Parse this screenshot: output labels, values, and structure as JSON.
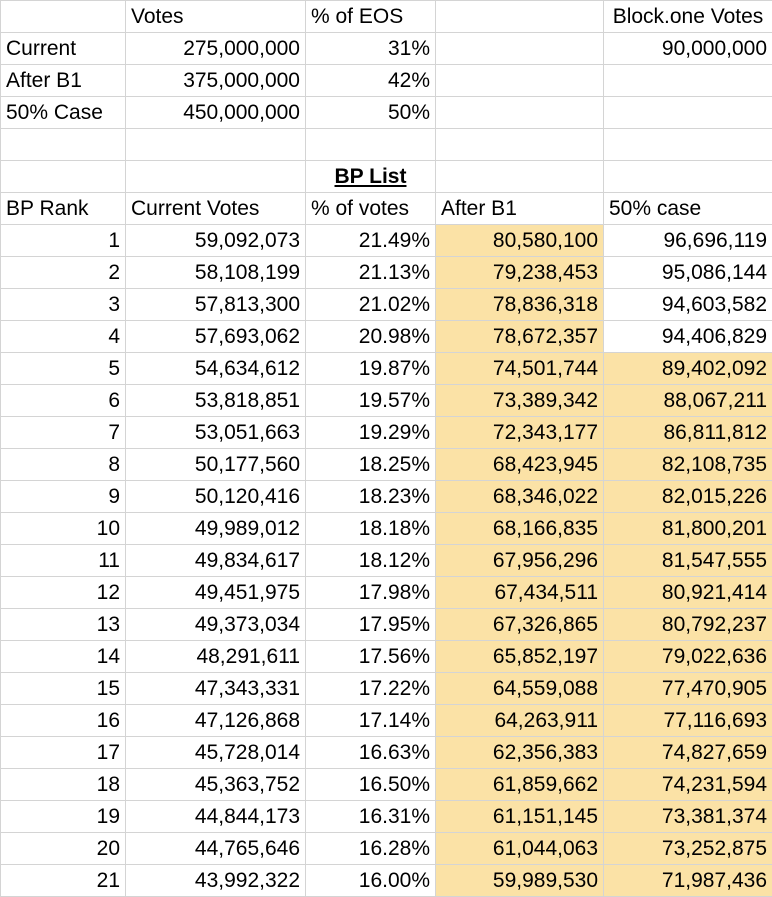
{
  "summary": {
    "headers": [
      "",
      "Votes",
      "% of EOS",
      "",
      "Block.one Votes"
    ],
    "rows": [
      [
        "Current",
        "275,000,000",
        "31%",
        "",
        "90,000,000"
      ],
      [
        "After B1",
        "375,000,000",
        "42%",
        "",
        ""
      ],
      [
        "50% Case",
        "450,000,000",
        "50%",
        "",
        ""
      ]
    ]
  },
  "bp_list": {
    "title": "BP List",
    "headers": [
      "BP Rank",
      "Current Votes",
      "% of votes",
      "After B1",
      "50% case"
    ],
    "rows": [
      [
        "1",
        "59,092,073",
        "21.49%",
        "80,580,100",
        "96,696,119"
      ],
      [
        "2",
        "58,108,199",
        "21.13%",
        "79,238,453",
        "95,086,144"
      ],
      [
        "3",
        "57,813,300",
        "21.02%",
        "78,836,318",
        "94,603,582"
      ],
      [
        "4",
        "57,693,062",
        "20.98%",
        "78,672,357",
        "94,406,829"
      ],
      [
        "5",
        "54,634,612",
        "19.87%",
        "74,501,744",
        "89,402,092"
      ],
      [
        "6",
        "53,818,851",
        "19.57%",
        "73,389,342",
        "88,067,211"
      ],
      [
        "7",
        "53,051,663",
        "19.29%",
        "72,343,177",
        "86,811,812"
      ],
      [
        "8",
        "50,177,560",
        "18.25%",
        "68,423,945",
        "82,108,735"
      ],
      [
        "9",
        "50,120,416",
        "18.23%",
        "68,346,022",
        "82,015,226"
      ],
      [
        "10",
        "49,989,012",
        "18.18%",
        "68,166,835",
        "81,800,201"
      ],
      [
        "11",
        "49,834,617",
        "18.12%",
        "67,956,296",
        "81,547,555"
      ],
      [
        "12",
        "49,451,975",
        "17.98%",
        "67,434,511",
        "80,921,414"
      ],
      [
        "13",
        "49,373,034",
        "17.95%",
        "67,326,865",
        "80,792,237"
      ],
      [
        "14",
        "48,291,611",
        "17.56%",
        "65,852,197",
        "79,022,636"
      ],
      [
        "15",
        "47,343,331",
        "17.22%",
        "64,559,088",
        "77,470,905"
      ],
      [
        "16",
        "47,126,868",
        "17.14%",
        "64,263,911",
        "77,116,693"
      ],
      [
        "17",
        "45,728,014",
        "16.63%",
        "62,356,383",
        "74,827,659"
      ],
      [
        "18",
        "45,363,752",
        "16.50%",
        "61,859,662",
        "74,231,594"
      ],
      [
        "19",
        "44,844,173",
        "16.31%",
        "61,151,145",
        "73,381,374"
      ],
      [
        "20",
        "44,765,646",
        "16.28%",
        "61,044,063",
        "73,252,875"
      ],
      [
        "21",
        "43,992,322",
        "16.00%",
        "59,989,530",
        "71,987,436"
      ]
    ],
    "highlight_color": "#fbe2a6",
    "highlighted_cells": {
      "after_b1_all_rows": true,
      "fifty_case_from_rank": 5
    }
  }
}
